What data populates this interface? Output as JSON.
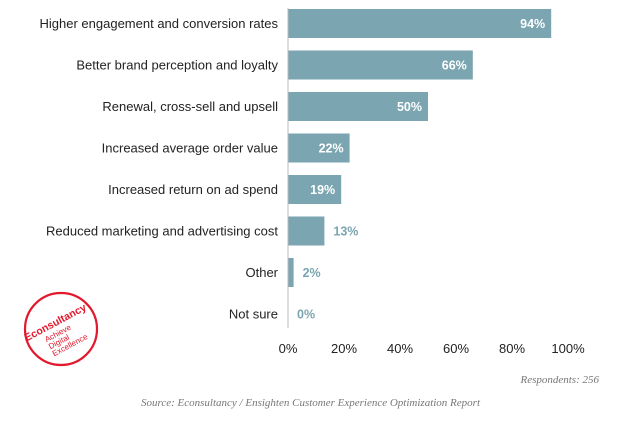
{
  "chart_data": {
    "type": "bar",
    "orientation": "horizontal",
    "categories": [
      "Higher engagement and conversion rates",
      "Better brand perception and loyalty",
      "Renewal, cross-sell and upsell",
      "Increased average order value",
      "Increased return on ad spend",
      "Reduced marketing and advertising cost",
      "Other",
      "Not sure"
    ],
    "values": [
      94,
      66,
      50,
      22,
      19,
      13,
      2,
      0
    ],
    "data_labels": [
      "94%",
      "66%",
      "50%",
      "22%",
      "19%",
      "13%",
      "2%",
      "0%"
    ],
    "xlim": [
      0,
      100
    ],
    "x_ticks": [
      0,
      20,
      40,
      60,
      80,
      100
    ],
    "x_tick_labels": [
      "0%",
      "20%",
      "40%",
      "60%",
      "80%",
      "100%"
    ],
    "grid": false,
    "bar_color": "#7aa5b1",
    "label_color_outside": "#7aa5b1",
    "label_color_inside": "#ffffff"
  },
  "notes": {
    "respondents": "Respondents: 256",
    "source": "Source: Econsultancy / Ensighten Customer Experience Optimization Report"
  },
  "logo": {
    "name": "Econsultancy",
    "tagline": [
      "Achieve",
      "Digital",
      "Excellence"
    ],
    "color": "#e3182d"
  }
}
